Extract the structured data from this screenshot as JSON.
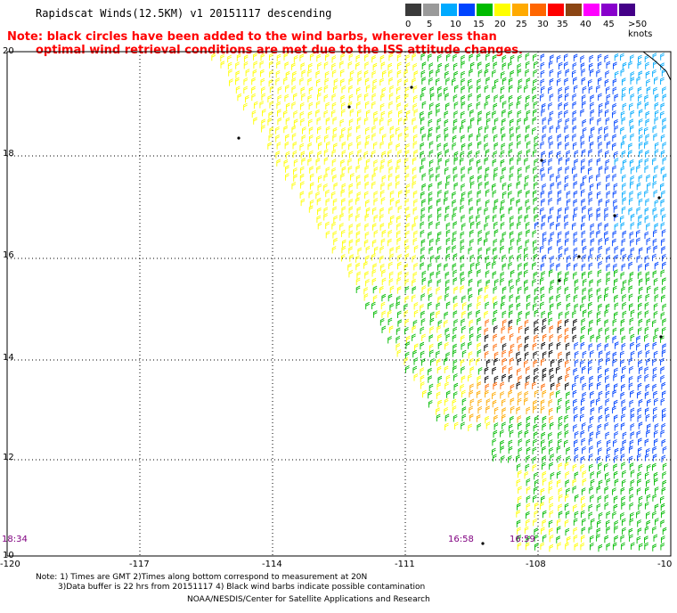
{
  "title": "Rapidscat Winds(12.5KM) v1 20151117 descending",
  "note_line1": "Note: black circles have been added to the wind barbs, wherever less than",
  "note_line2": "optimal wind retrieval conditions are met due to the ISS attitude changes.",
  "legend": {
    "labels": [
      "0",
      "5",
      "10",
      "15",
      "20",
      "25",
      "30",
      "35",
      "40",
      "45",
      ">50 knots"
    ],
    "colors": [
      "#3a3a3a",
      "#9a9a9a",
      "#00aaff",
      "#0044ff",
      "#00bb00",
      "#ffff00",
      "#ffaa00",
      "#ff6600",
      "#ff0000",
      "#8b4513",
      "#ff00ff",
      "#8800cc",
      "#440088"
    ]
  },
  "lat_labels": [
    "20",
    "18",
    "16",
    "14",
    "12",
    "10"
  ],
  "lon_labels": [
    "-120",
    "-117",
    "-114",
    "-111",
    "-108",
    "-10"
  ],
  "time_labels": [
    "18:34",
    "16:58",
    "16:59"
  ],
  "footer": {
    "line1": "Note: 1) Times are GMT 2)Times along bottom correspond to measurement at 20N",
    "line2": "3)Data buffer is 22 hrs from 20151117 4) Black wind barbs indicate possible contamination",
    "line3": "NOAA/NESDIS/Center for Satellite Applications and Research"
  },
  "map": {
    "lon_range": [
      -120,
      -104
    ],
    "lat_range": [
      10,
      20
    ],
    "gridlines": true
  }
}
